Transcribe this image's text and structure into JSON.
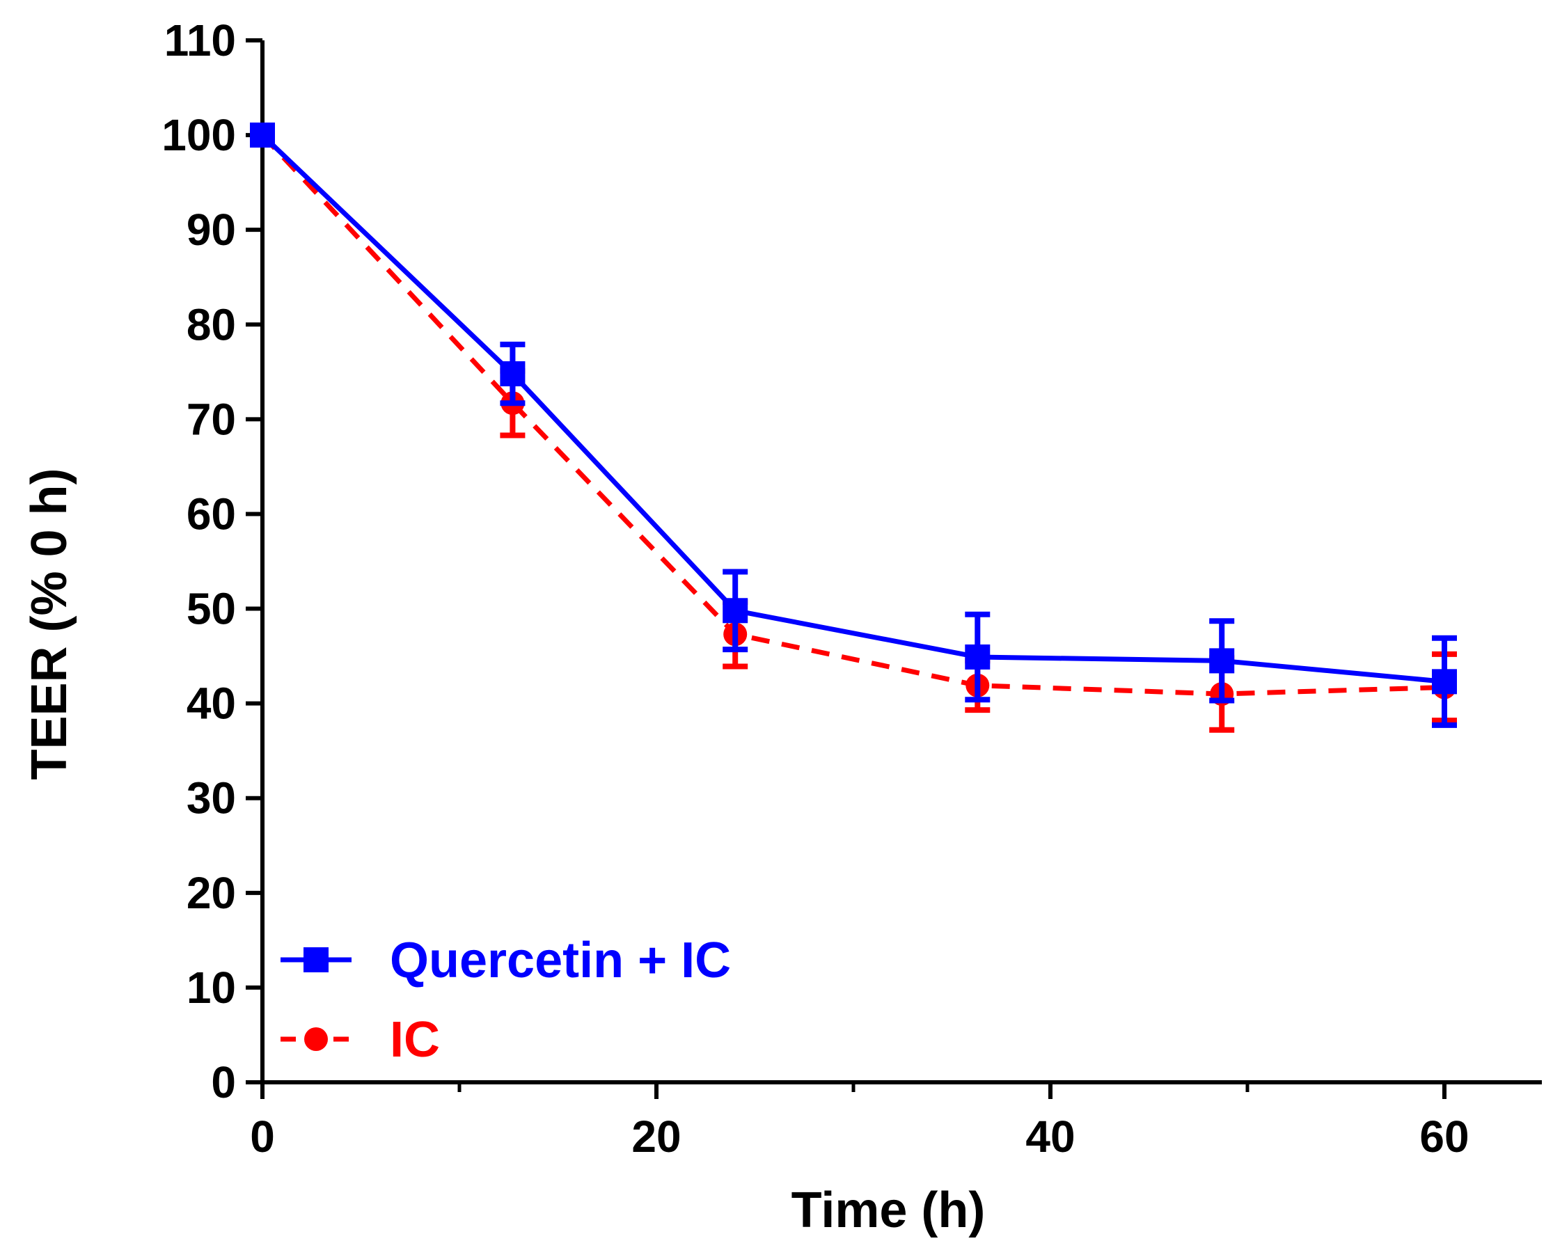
{
  "chart_data": {
    "type": "line",
    "title": "",
    "xlabel": "Time (h)",
    "ylabel": "TEER (% 0 h)",
    "xlim": [
      0,
      65
    ],
    "ylim": [
      0,
      110
    ],
    "x_ticks": [
      0,
      20,
      40,
      60
    ],
    "x_tick_labels": [
      "0",
      "20",
      "40",
      "60"
    ],
    "y_ticks": [
      0,
      10,
      20,
      30,
      40,
      50,
      60,
      70,
      80,
      90,
      100,
      110
    ],
    "y_tick_labels": [
      "0",
      "10",
      "20",
      "30",
      "40",
      "50",
      "60",
      "70",
      "80",
      "90",
      "100",
      "110"
    ],
    "grid": false,
    "legend_position": "bottom-left",
    "series": [
      {
        "name": "IC",
        "color": "#ff0000",
        "marker": "circle",
        "line_style": "dashed",
        "x": [
          0,
          12.7,
          24,
          36.3,
          48.7,
          60
        ],
        "y": [
          100,
          71.7,
          47.3,
          41.9,
          41.0,
          41.7
        ],
        "err": [
          0,
          3.4,
          3.4,
          2.6,
          3.8,
          3.5
        ]
      },
      {
        "name": "Quercetin + IC",
        "color": "#0000ff",
        "marker": "square",
        "line_style": "solid",
        "x": [
          0,
          12.7,
          24,
          36.3,
          48.7,
          60
        ],
        "y": [
          100,
          74.8,
          49.8,
          44.9,
          44.5,
          42.3
        ],
        "err": [
          0,
          3.1,
          4.1,
          4.5,
          4.2,
          4.6
        ]
      }
    ]
  }
}
